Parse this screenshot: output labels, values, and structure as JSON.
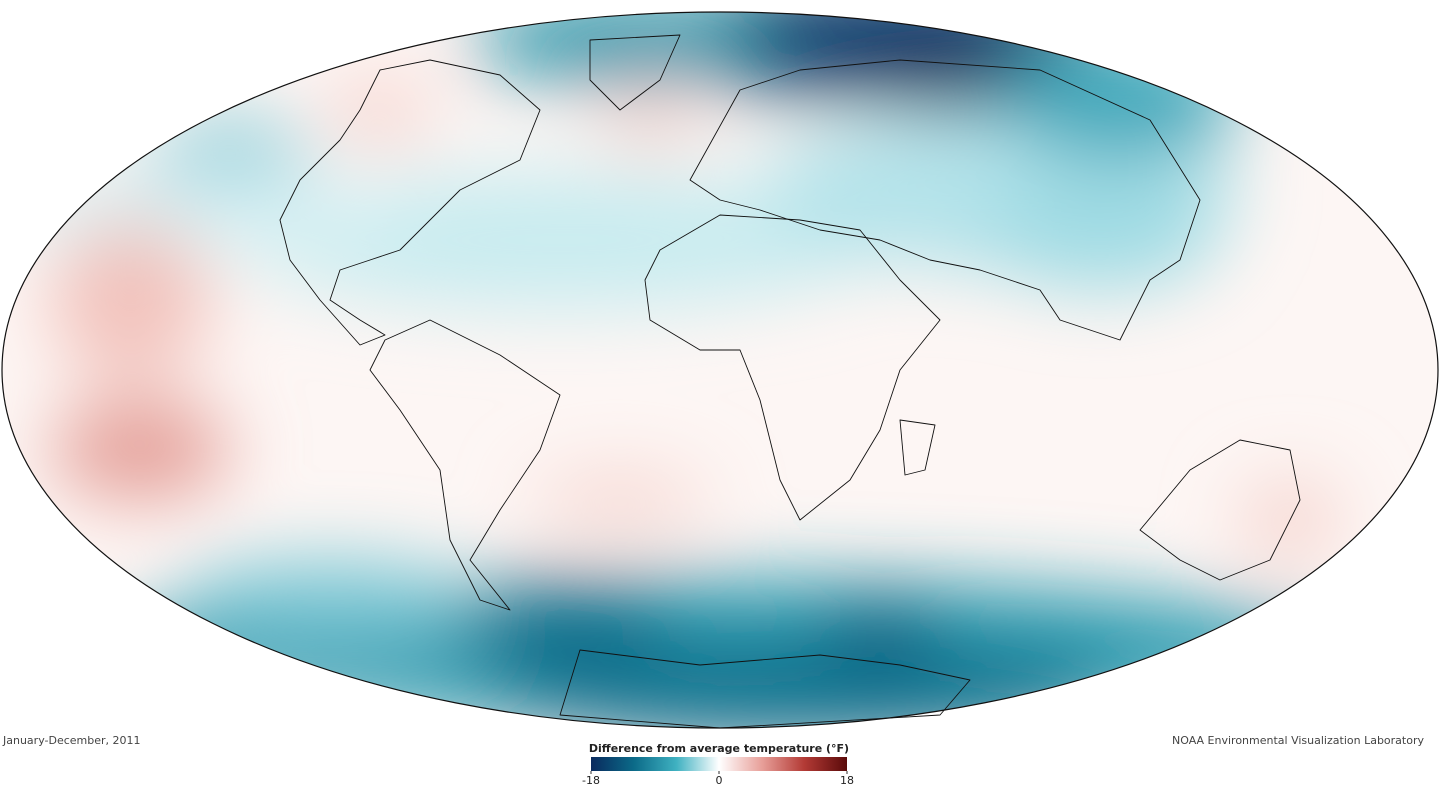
{
  "date_label": "January-December, 2011",
  "credit": "NOAA Environmental Visualization Laboratory",
  "legend": {
    "title": "Difference from average temperature (°F)",
    "range": [
      -18,
      18
    ],
    "ticks": [
      -18,
      0,
      18
    ],
    "colors": [
      "#0a2a5e",
      "#0b6a88",
      "#3fb1c1",
      "#ffffff",
      "#e8a09a",
      "#b33a35",
      "#5a0a0a"
    ]
  }
}
